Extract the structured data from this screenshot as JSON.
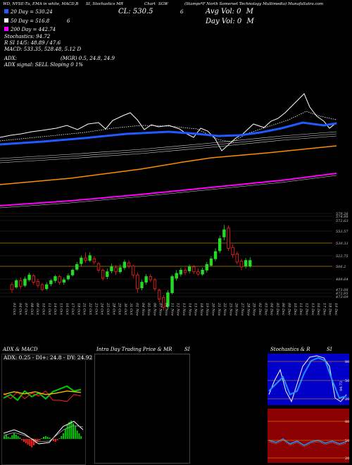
{
  "header": {
    "left": "WD, NYSE-Tu, EMA in white, MACD,B",
    "mid": "SI, Stochastics MR",
    "chart_prefix": "Chart",
    "symbol": "SGW",
    "right": "(Stamps*F North Somerset Technology Multimedia) MunafaSutra.com"
  },
  "info": {
    "cl": "CL: 530.5",
    "day_vol_prefix": "6",
    "avg_vol": "Avg Vol: 0",
    "avg_vol_unit": "M",
    "day_vol": "Day Vol: 0",
    "day_vol_unit": "M",
    "ema20": "20 Day = 530.24",
    "ema50": "50 Day = 516.8",
    "ema50_suffix": "6",
    "ema200": "200 Day = 442.74",
    "stoch": "Stochastics: 94.72",
    "si_line": "R          SI 14/5: 48.89 / 47.6",
    "macd": "MACD: 533.35, 528.48, 5.12  D",
    "adx": "ADX:",
    "adx_right": "(MGR) 0.5, 24.8, 24.9",
    "adx_signal": "ADX  signal: SELL  Sloping 0 1%"
  },
  "legend_colors": {
    "ema20": "#1f5bff",
    "ema50": "#ffffff",
    "ema200": "#ff00ff"
  },
  "price_levels": [
    "579.26",
    "574.98",
    "572.63",
    "553.57",
    "539.33",
    "522.75",
    "506.2",
    "489.64",
    "473.08",
    "472.95",
    "473.09"
  ],
  "date_labels": [
    "03 Oct",
    "04 Oct",
    "07 Oct",
    "08 Oct",
    "09 Oct",
    "10 Oct",
    "11 Oct",
    "14 Oct",
    "15 Oct",
    "16 Oct",
    "17 Oct",
    "18 Oct",
    "21 Oct",
    "22 Oct",
    "23 Oct",
    "24 Oct",
    "25 Oct",
    "28 Oct",
    "29 Oct",
    "30 Oct",
    "31 Oct",
    "01 Nov",
    "04 Nov",
    "05 Nov",
    "06 Nov",
    "07 Nov",
    "08 Nov",
    "11 Nov",
    "12 Nov",
    "13 Nov",
    "14 Nov",
    "15 Nov",
    "18 Nov",
    "19 Nov",
    "20 Nov",
    "21 Nov",
    "22 Nov",
    "25 Nov",
    "26 Nov",
    "27 Nov",
    "28 Nov",
    "29 Nov",
    "02 Dec",
    "03 Dec",
    "04 Dec",
    "05 Dec",
    "06 Dec",
    "09 Dec",
    "10 Dec",
    "11 Dec",
    "12 Dec",
    "13 Dec",
    "16 Dec",
    "17 Dec",
    "18 Dec",
    "19 Dec"
  ],
  "panels": {
    "adx_title": "ADX  & MACD",
    "adx_values": "ADX: 0.25 - DI+: 24.8 - DY: 24.92",
    "intra_title": "Intra  Day Trading Price  & MR",
    "intra_si": "SI",
    "stoch_title": "Stochastics & R",
    "stoch_si": "SI",
    "stoch_ticks": [
      "80",
      "50",
      "20"
    ],
    "stoch_val": "94.72",
    "si_ticks": [
      "80",
      "50",
      "20"
    ]
  },
  "chart_data": {
    "type": "candlestick",
    "price_axis_ticks": [
      579.26,
      574.98,
      572.63,
      553.57,
      539.33,
      522.75,
      506.2,
      489.64,
      473.08,
      472.95,
      473.09
    ],
    "candles": [
      {
        "date": "03 Oct",
        "o": 500,
        "c": 494,
        "h": 503,
        "l": 490
      },
      {
        "date": "04 Oct",
        "o": 497,
        "c": 505,
        "h": 507,
        "l": 495
      },
      {
        "date": "07 Oct",
        "o": 505,
        "c": 498,
        "h": 509,
        "l": 495
      },
      {
        "date": "08 Oct",
        "o": 499,
        "c": 507,
        "h": 510,
        "l": 497
      },
      {
        "date": "09 Oct",
        "o": 506,
        "c": 512,
        "h": 515,
        "l": 504
      },
      {
        "date": "10 Oct",
        "o": 511,
        "c": 503,
        "h": 513,
        "l": 500
      },
      {
        "date": "11 Oct",
        "o": 504,
        "c": 499,
        "h": 507,
        "l": 496
      },
      {
        "date": "14 Oct",
        "o": 500,
        "c": 494,
        "h": 502,
        "l": 492
      },
      {
        "date": "15 Oct",
        "o": 495,
        "c": 500,
        "h": 503,
        "l": 493
      },
      {
        "date": "16 Oct",
        "o": 501,
        "c": 505,
        "h": 507,
        "l": 498
      },
      {
        "date": "17 Oct",
        "o": 505,
        "c": 510,
        "h": 512,
        "l": 502
      },
      {
        "date": "18 Oct",
        "o": 510,
        "c": 503,
        "h": 512,
        "l": 500
      },
      {
        "date": "21 Oct",
        "o": 503,
        "c": 506,
        "h": 509,
        "l": 500
      },
      {
        "date": "22 Oct",
        "o": 507,
        "c": 511,
        "h": 514,
        "l": 505
      },
      {
        "date": "23 Oct",
        "o": 512,
        "c": 518,
        "h": 520,
        "l": 510
      },
      {
        "date": "24 Oct",
        "o": 519,
        "c": 525,
        "h": 528,
        "l": 517
      },
      {
        "date": "25 Oct",
        "o": 526,
        "c": 533,
        "h": 536,
        "l": 523
      },
      {
        "date": "28 Oct",
        "o": 533,
        "c": 530,
        "h": 540,
        "l": 527
      },
      {
        "date": "29 Oct",
        "o": 530,
        "c": 536,
        "h": 540,
        "l": 528
      },
      {
        "date": "30 Oct",
        "o": 532,
        "c": 528,
        "h": 535,
        "l": 525
      },
      {
        "date": "31 Oct",
        "o": 526,
        "c": 518,
        "h": 528,
        "l": 515
      },
      {
        "date": "01 Nov",
        "o": 518,
        "c": 508,
        "h": 520,
        "l": 505
      },
      {
        "date": "04 Nov",
        "o": 510,
        "c": 516,
        "h": 520,
        "l": 507
      },
      {
        "date": "05 Nov",
        "o": 517,
        "c": 522,
        "h": 526,
        "l": 514
      },
      {
        "date": "06 Nov",
        "o": 521,
        "c": 516,
        "h": 524,
        "l": 512
      },
      {
        "date": "07 Nov",
        "o": 516,
        "c": 521,
        "h": 525,
        "l": 514
      },
      {
        "date": "08 Nov",
        "o": 521,
        "c": 528,
        "h": 531,
        "l": 518
      },
      {
        "date": "11 Nov",
        "o": 527,
        "c": 523,
        "h": 530,
        "l": 520
      },
      {
        "date": "12 Nov",
        "o": 523,
        "c": 512,
        "h": 525,
        "l": 508
      },
      {
        "date": "13 Nov",
        "o": 512,
        "c": 495,
        "h": 515,
        "l": 490
      },
      {
        "date": "14 Nov",
        "o": 496,
        "c": 503,
        "h": 506,
        "l": 493
      },
      {
        "date": "15 Nov",
        "o": 503,
        "c": 510,
        "h": 513,
        "l": 500
      },
      {
        "date": "18 Nov",
        "o": 510,
        "c": 506,
        "h": 513,
        "l": 503
      },
      {
        "date": "19 Nov",
        "o": 506,
        "c": 495,
        "h": 508,
        "l": 492
      },
      {
        "date": "20 Nov",
        "o": 493,
        "c": 482,
        "h": 495,
        "l": 478
      },
      {
        "date": "21 Nov",
        "o": 484,
        "c": 472,
        "h": 487,
        "l": 468
      },
      {
        "date": "22 Nov",
        "o": 473,
        "c": 490,
        "h": 493,
        "l": 470
      },
      {
        "date": "25 Nov",
        "o": 490,
        "c": 510,
        "h": 512,
        "l": 488
      },
      {
        "date": "26 Nov",
        "o": 508,
        "c": 514,
        "h": 518,
        "l": 505
      },
      {
        "date": "27 Nov",
        "o": 513,
        "c": 518,
        "h": 521,
        "l": 510
      },
      {
        "date": "28 Nov",
        "o": 518,
        "c": 515,
        "h": 521,
        "l": 512
      },
      {
        "date": "29 Nov",
        "o": 517,
        "c": 522,
        "h": 525,
        "l": 514
      },
      {
        "date": "02 Dec",
        "o": 522,
        "c": 516,
        "h": 524,
        "l": 513
      },
      {
        "date": "03 Dec",
        "o": 516,
        "c": 513,
        "h": 520,
        "l": 511
      },
      {
        "date": "04 Dec",
        "o": 513,
        "c": 518,
        "h": 521,
        "l": 511
      },
      {
        "date": "05 Dec",
        "o": 518,
        "c": 525,
        "h": 528,
        "l": 515
      },
      {
        "date": "06 Dec",
        "o": 524,
        "c": 532,
        "h": 535,
        "l": 522
      },
      {
        "date": "09 Dec",
        "o": 532,
        "c": 541,
        "h": 545,
        "l": 529
      },
      {
        "date": "10 Dec",
        "o": 542,
        "c": 557,
        "h": 561,
        "l": 539
      },
      {
        "date": "11 Dec",
        "o": 559,
        "c": 568,
        "h": 574,
        "l": 555
      },
      {
        "date": "12 Dec",
        "o": 570,
        "c": 545,
        "h": 573,
        "l": 542
      },
      {
        "date": "13 Dec",
        "o": 546,
        "c": 537,
        "h": 550,
        "l": 533
      },
      {
        "date": "16 Dec",
        "o": 538,
        "c": 528,
        "h": 541,
        "l": 525
      },
      {
        "date": "17 Dec",
        "o": 529,
        "c": 522,
        "h": 532,
        "l": 518
      },
      {
        "date": "18 Dec",
        "o": 523,
        "c": 530,
        "h": 533,
        "l": 520
      },
      {
        "date": "19 Dec",
        "o": 523,
        "c": 530,
        "h": 534,
        "l": 521
      }
    ]
  }
}
